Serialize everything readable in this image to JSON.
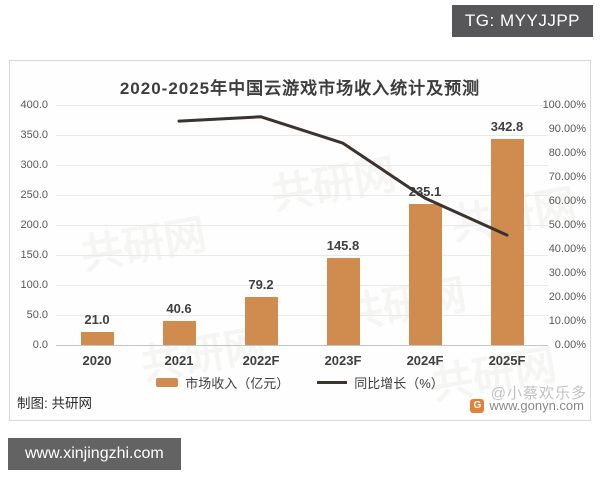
{
  "page": {
    "tg_badge": "TG: MYYJJPP",
    "site_badge": "www.xinjingzhi.com"
  },
  "panel": {
    "title": "2020-2025年中国云游戏市场收入统计及预测",
    "credit": "制图: 共研网",
    "source_site": "www.gonyn.com",
    "source_logo_letter": "G",
    "overlay_watermark": "@小蔡欢乐多",
    "plot_watermark": "共研网"
  },
  "colors": {
    "bar": "#d08c4e",
    "line": "#3a332e",
    "grid": "#e9e9e9",
    "badge_bg": "#57575a",
    "axis_text": "#595959",
    "label_text": "#404040"
  },
  "chart_data": {
    "type": "bar",
    "title": "2020-2025年中国云游戏市场收入统计及预测",
    "categories": [
      "2020",
      "2021",
      "2022F",
      "2023F",
      "2024F",
      "2025F"
    ],
    "series": [
      {
        "name": "市场收入（亿元）",
        "kind": "bar",
        "axis": "left",
        "values": [
          21.0,
          40.6,
          79.2,
          145.8,
          235.1,
          342.8
        ],
        "labels": [
          "21.0",
          "40.6",
          "79.2",
          "145.8",
          "235.1",
          "342.8"
        ],
        "color": "#d08c4e"
      },
      {
        "name": "同比增长（%）",
        "kind": "line",
        "axis": "right",
        "values": [
          null,
          93.3,
          95.1,
          84.1,
          61.2,
          45.8
        ],
        "color": "#3a332e"
      }
    ],
    "left_axis": {
      "min": 0,
      "max": 400,
      "step": 50,
      "labels": [
        "400.0",
        "350.0",
        "300.0",
        "250.0",
        "200.0",
        "150.0",
        "100.0",
        "50.0",
        "0.0"
      ]
    },
    "right_axis": {
      "min": 0,
      "max": 100,
      "step": 10,
      "labels": [
        "100.00%",
        "90.00%",
        "80.00%",
        "70.00%",
        "60.00%",
        "50.00%",
        "40.00%",
        "30.00%",
        "20.00%",
        "10.00%",
        "0.00%"
      ]
    },
    "grid": true,
    "legend_position": "bottom"
  }
}
